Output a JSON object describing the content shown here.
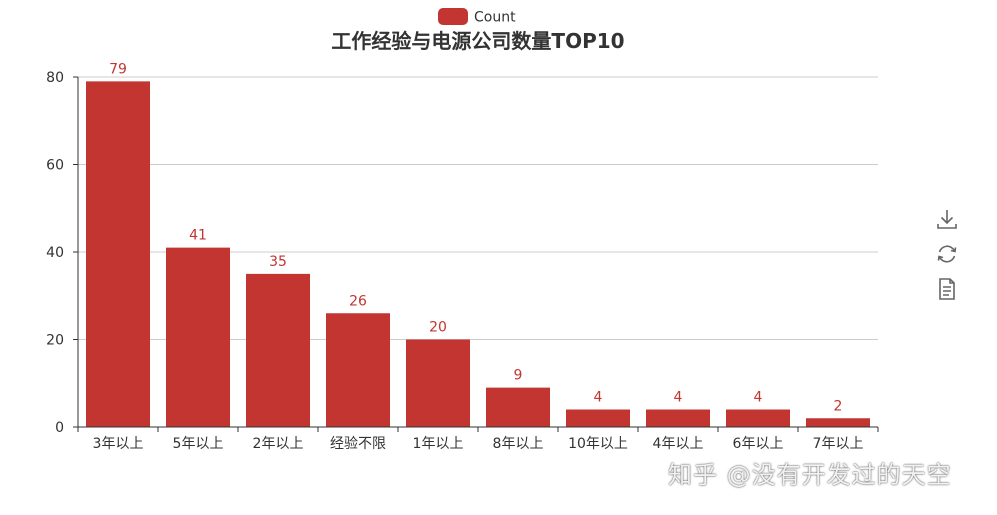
{
  "chart_data": {
    "type": "bar",
    "title": "工作经验与电源公司数量TOP10",
    "legend": {
      "label": "Count",
      "placement": "top-center"
    },
    "categories": [
      "3年以上",
      "5年以上",
      "2年以上",
      "经验不限",
      "1年以上",
      "8年以上",
      "10年以上",
      "4年以上",
      "6年以上",
      "7年以上"
    ],
    "series": [
      {
        "name": "Count",
        "values": [
          79,
          41,
          35,
          26,
          20,
          9,
          4,
          4,
          4,
          2
        ],
        "color": "#c23531"
      }
    ],
    "ylim": [
      0,
      80
    ],
    "yticks": [
      0,
      20,
      40,
      60,
      80
    ],
    "grid": true,
    "data_labels": true
  },
  "toolbox": {
    "items": [
      {
        "name": "save-as-image",
        "icon": "download-icon"
      },
      {
        "name": "restore",
        "icon": "refresh-icon"
      },
      {
        "name": "data-view",
        "icon": "document-icon"
      }
    ]
  },
  "watermark": {
    "text": "知乎 @没有开发过的天空"
  },
  "colors": {
    "bar": "#c23531",
    "axis": "#333333",
    "grid": "#cccccc",
    "label": "#c23531",
    "title": "#333333"
  }
}
